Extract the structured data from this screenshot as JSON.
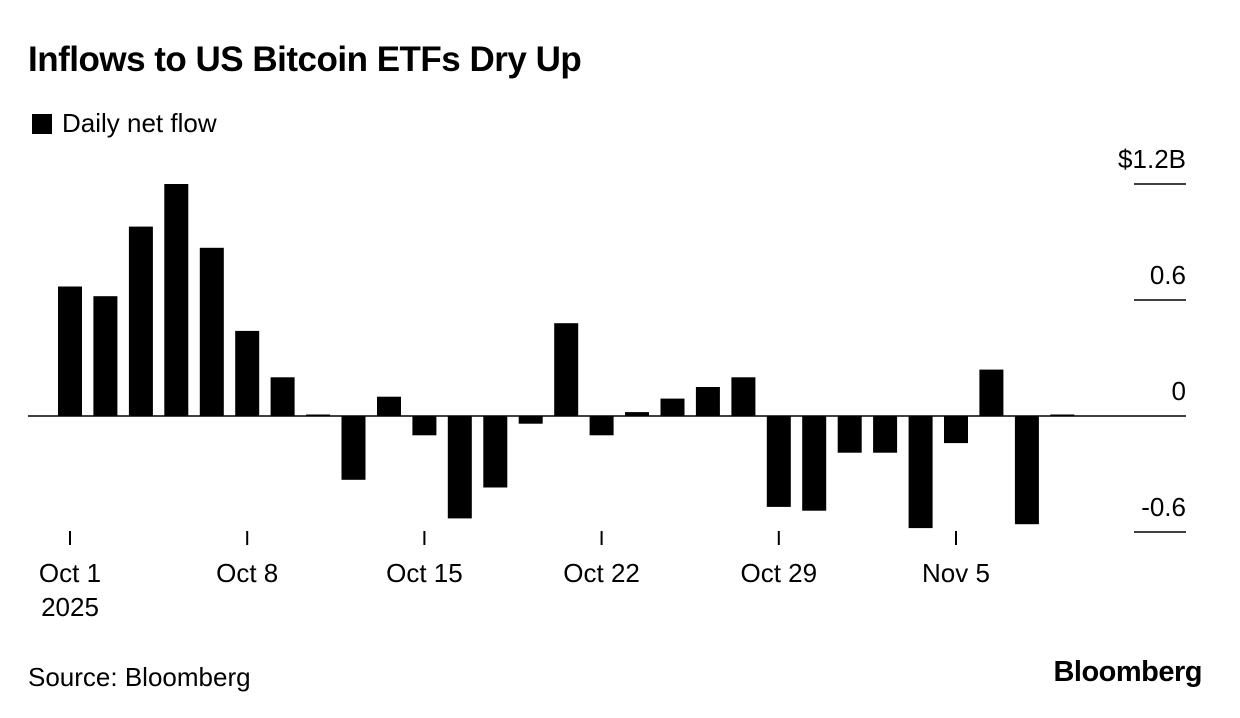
{
  "header": {
    "title": "Inflows to US Bitcoin ETFs Dry Up"
  },
  "footer": {
    "source": "Source: Bloomberg",
    "brand": "Bloomberg"
  },
  "chart_data": {
    "type": "bar",
    "legend": [
      "Daily net flow"
    ],
    "legend_position": "top-left",
    "grid": false,
    "x": [
      "2025-10-01",
      "2025-10-02",
      "2025-10-03",
      "2025-10-06",
      "2025-10-07",
      "2025-10-08",
      "2025-10-09",
      "2025-10-10",
      "2025-10-13",
      "2025-10-14",
      "2025-10-15",
      "2025-10-16",
      "2025-10-17",
      "2025-10-20",
      "2025-10-21",
      "2025-10-22",
      "2025-10-23",
      "2025-10-24",
      "2025-10-27",
      "2025-10-28",
      "2025-10-29",
      "2025-10-30",
      "2025-10-31",
      "2025-11-03",
      "2025-11-04",
      "2025-11-05",
      "2025-11-06",
      "2025-11-07",
      "2025-11-10"
    ],
    "series": [
      {
        "name": "Daily net flow",
        "values": [
          0.67,
          0.62,
          0.98,
          1.2,
          0.87,
          0.44,
          0.2,
          0.0,
          -0.33,
          0.1,
          -0.1,
          -0.53,
          -0.37,
          -0.04,
          0.48,
          -0.1,
          0.02,
          0.09,
          0.15,
          0.2,
          -0.47,
          -0.49,
          -0.19,
          -0.19,
          -0.58,
          -0.14,
          0.24,
          -0.56,
          0.0
        ]
      }
    ],
    "xticks": [
      {
        "x": "2025-10-01",
        "label": "Oct 1",
        "sublabel": "2025"
      },
      {
        "x": "2025-10-08",
        "label": "Oct 8"
      },
      {
        "x": "2025-10-15",
        "label": "Oct 15"
      },
      {
        "x": "2025-10-22",
        "label": "Oct 22"
      },
      {
        "x": "2025-10-29",
        "label": "Oct 29"
      },
      {
        "x": "2025-11-05",
        "label": "Nov 5"
      }
    ],
    "yticks": [
      {
        "value": 1.2,
        "label": "$1.2B"
      },
      {
        "value": 0.6,
        "label": "0.6"
      },
      {
        "value": 0,
        "label": "0"
      },
      {
        "value": -0.6,
        "label": "-0.6"
      }
    ],
    "ylim": [
      -0.6,
      1.2
    ],
    "xlabel": "",
    "ylabel": "",
    "colors": {
      "bar": "#000000",
      "axis": "#000000"
    }
  }
}
